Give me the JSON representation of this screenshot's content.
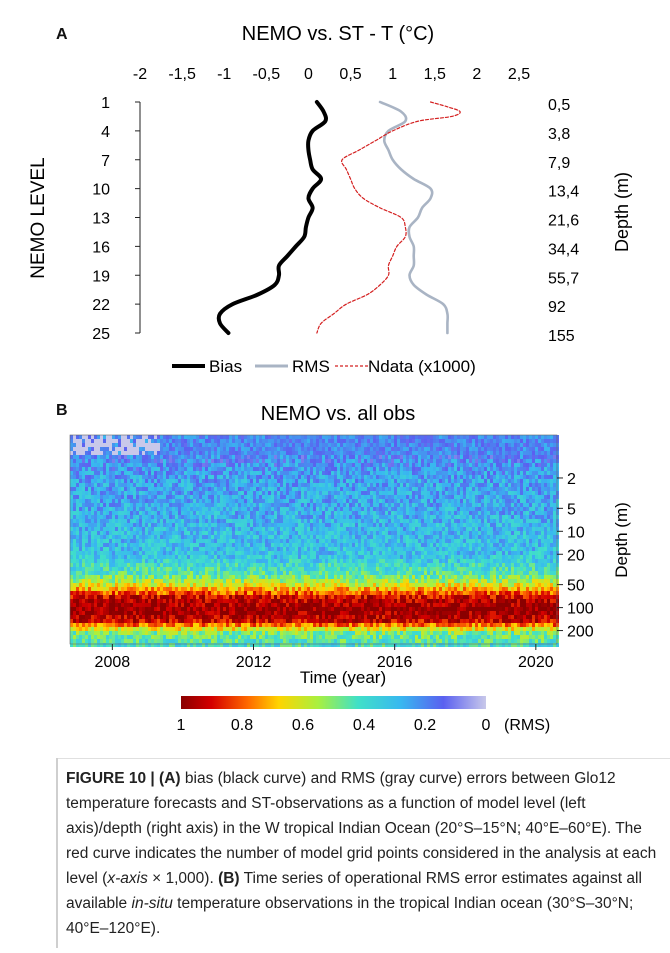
{
  "panelA": {
    "label": "A",
    "title": "NEMO vs. ST - T (°C)",
    "ylabel_left": "NEMO LEVEL",
    "ylabel_right": "Depth (m)",
    "legend": [
      "Bias",
      "RMS",
      "Ndata (x1000)"
    ]
  },
  "panelB": {
    "label": "B",
    "title": "NEMO vs. all obs",
    "xlabel": "Time (year)",
    "ylabel_right": "Depth (m)",
    "x_ticks": [
      "2008",
      "2012",
      "2016",
      "2020"
    ],
    "depth_ticks": [
      "2",
      "5",
      "10",
      "20",
      "50",
      "100",
      "200"
    ],
    "colorbar_ticks": [
      "1",
      "0.8",
      "0.6",
      "0.4",
      "0.2",
      "0"
    ],
    "colorbar_unit": "(RMS)"
  },
  "chart_data": [
    {
      "type": "line",
      "title": "NEMO vs. ST - T (°C)",
      "xlabel": "",
      "ylabel": "NEMO LEVEL",
      "ylabel_right": "Depth (m)",
      "xlim": [
        -2,
        2.5
      ],
      "x_ticks": [
        "-2",
        "-1,5",
        "-1",
        "-0,5",
        "0",
        "0,5",
        "1",
        "1,5",
        "2",
        "2,5"
      ],
      "ylim": [
        1,
        25
      ],
      "y_ticks": [
        "1",
        "4",
        "7",
        "10",
        "13",
        "16",
        "19",
        "22",
        "25"
      ],
      "y_ticks_right": [
        "0,5",
        "3,8",
        "7,9",
        "13,4",
        "21,6",
        "34,4",
        "55,7",
        "92",
        "155"
      ],
      "series": [
        {
          "name": "Bias",
          "color": "#000000",
          "level": [
            1,
            2,
            3,
            4,
            5,
            6,
            7,
            8,
            9,
            10,
            11,
            12,
            13,
            14,
            15,
            16,
            17,
            18,
            19,
            20,
            21,
            22,
            23,
            24,
            25
          ],
          "values": [
            0.1,
            0.18,
            0.2,
            0.05,
            0.0,
            0.0,
            0.02,
            0.05,
            0.15,
            0.05,
            0.0,
            0.05,
            0.0,
            -0.03,
            -0.05,
            -0.15,
            -0.25,
            -0.35,
            -0.35,
            -0.4,
            -0.6,
            -0.9,
            -1.05,
            -1.05,
            -0.95
          ]
        },
        {
          "name": "RMS",
          "color": "#a9b4c4",
          "level": [
            1,
            2,
            3,
            4,
            5,
            6,
            7,
            8,
            9,
            10,
            11,
            12,
            13,
            14,
            15,
            16,
            17,
            18,
            19,
            20,
            21,
            22,
            23,
            24,
            25
          ],
          "values": [
            0.85,
            1.1,
            1.15,
            0.95,
            0.9,
            0.95,
            1.0,
            1.1,
            1.25,
            1.45,
            1.45,
            1.35,
            1.3,
            1.2,
            1.2,
            1.25,
            1.25,
            1.25,
            1.2,
            1.25,
            1.4,
            1.6,
            1.65,
            1.65,
            1.65
          ]
        },
        {
          "name": "Ndata (x1000)",
          "color": "#d42020",
          "level": [
            1,
            1.5,
            2,
            2.5,
            3,
            4,
            5,
            6,
            7,
            8,
            9,
            10,
            11,
            12,
            13,
            14,
            15,
            16,
            17,
            18,
            19,
            20,
            21,
            22,
            23,
            24,
            25
          ],
          "values": [
            1.45,
            1.65,
            1.8,
            1.7,
            1.3,
            1.0,
            0.8,
            0.6,
            0.4,
            0.45,
            0.5,
            0.55,
            0.65,
            0.85,
            1.1,
            1.15,
            1.15,
            1.05,
            1.0,
            0.95,
            0.95,
            0.85,
            0.7,
            0.45,
            0.3,
            0.15,
            0.1
          ]
        }
      ]
    },
    {
      "type": "heatmap",
      "title": "NEMO vs. all obs",
      "xlabel": "Time (year)",
      "ylabel": "Depth (m)",
      "xlim": [
        2006.8,
        2020.6
      ],
      "x_ticks": [
        2008,
        2012,
        2016,
        2020
      ],
      "depth_ticks": [
        2,
        5,
        10,
        20,
        50,
        100,
        200
      ],
      "colorbar": {
        "ticks": [
          1,
          0.8,
          0.6,
          0.4,
          0.2,
          0
        ],
        "unit": "(RMS)"
      },
      "profile": [
        {
          "depth": 1,
          "rms": 0.2
        },
        {
          "depth": 2,
          "rms": 0.25
        },
        {
          "depth": 5,
          "rms": 0.27
        },
        {
          "depth": 10,
          "rms": 0.3
        },
        {
          "depth": 20,
          "rms": 0.32
        },
        {
          "depth": 35,
          "rms": 0.45
        },
        {
          "depth": 50,
          "rms": 0.65
        },
        {
          "depth": 70,
          "rms": 0.92
        },
        {
          "depth": 100,
          "rms": 1.0
        },
        {
          "depth": 140,
          "rms": 0.92
        },
        {
          "depth": 170,
          "rms": 0.7
        },
        {
          "depth": 200,
          "rms": 0.5
        },
        {
          "depth": 300,
          "rms": 0.4
        }
      ]
    }
  ],
  "caption": {
    "label": "FIGURE 10 | (A)",
    "part1": " bias (black curve) and RMS (gray curve) errors between Glo12 temperature forecasts and ST-observations as a function of model level (left axis)/depth (right axis) in the W tropical Indian Ocean (20°S–15°N; 40°E–60°E). The red curve indicates the number of model grid points considered in the analysis at each level (",
    "italic1": "x-axis",
    "part2": " × 1,000). ",
    "label_b": "(B)",
    "part3": " Time series of operational RMS error estimates against all available ",
    "italic2": "in-situ",
    "part4": " temperature observations in the tropical Indian ocean (30°S–30°N; 40°E–120°E)."
  }
}
